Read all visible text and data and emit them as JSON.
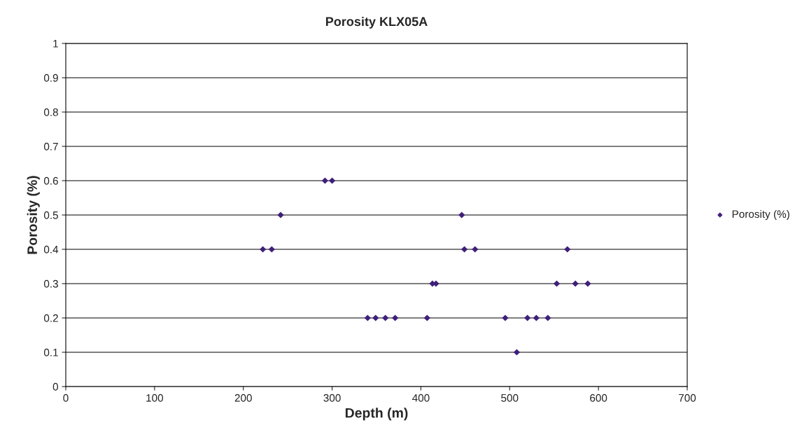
{
  "chart_data": {
    "type": "scatter",
    "title": "Porosity KLX05A",
    "xlabel": "Depth (m)",
    "ylabel": "Porosity (%)",
    "series": [
      {
        "name": "Porosity (%)",
        "color": "#3f1f7a",
        "x": [
          222,
          232,
          242,
          292,
          300,
          340,
          349,
          360,
          371,
          407,
          413,
          417,
          446,
          449,
          461,
          495,
          508,
          520,
          530,
          543,
          553,
          565,
          574,
          588
        ],
        "values": [
          0.4,
          0.4,
          0.5,
          0.6,
          0.6,
          0.2,
          0.2,
          0.2,
          0.2,
          0.2,
          0.3,
          0.3,
          0.5,
          0.4,
          0.4,
          0.2,
          0.1,
          0.2,
          0.2,
          0.2,
          0.3,
          0.4,
          0.3,
          0.3
        ]
      }
    ],
    "xlim": [
      0,
      700
    ],
    "xticks": [
      0,
      100,
      200,
      300,
      400,
      500,
      600,
      700
    ],
    "ylim": [
      0,
      1
    ],
    "yticks": [
      0,
      0.1,
      0.2,
      0.3,
      0.4,
      0.5,
      0.6,
      0.7,
      0.8,
      0.9,
      1
    ],
    "grid": "y",
    "legend": "right",
    "marker": "diamond"
  }
}
